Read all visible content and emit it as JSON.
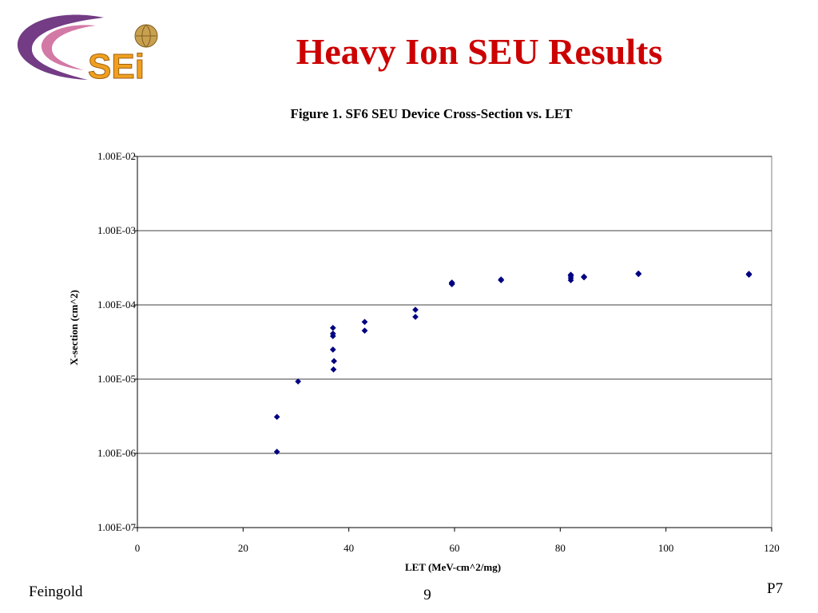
{
  "slide": {
    "title": "Heavy Ion SEU Results",
    "logo_text": "SEi",
    "footer_left": "Feingold",
    "footer_page": "9",
    "footer_right": "P7"
  },
  "colors": {
    "title": "#cc0000",
    "marker": "#000080",
    "logo_swoosh": "#5a1a6e",
    "logo_text": "#f0a020"
  },
  "chart_data": {
    "type": "scatter",
    "title": "Figure 1. SF6 SEU Device Cross-Section vs. LET",
    "xlabel": "LET (MeV-cm^2/mg)",
    "ylabel": "X-section (cm^2)",
    "xlim": [
      0,
      120
    ],
    "ylim": [
      1e-07,
      0.01
    ],
    "yscale": "log",
    "grid": "horizontal",
    "legend": "none",
    "x_ticks": [
      0,
      20,
      40,
      60,
      80,
      100,
      120
    ],
    "x_tick_labels": [
      "0",
      "20",
      "40",
      "60",
      "80",
      "100",
      "120"
    ],
    "y_ticks": [
      1e-07,
      1e-06,
      1e-05,
      0.0001,
      0.001,
      0.01
    ],
    "y_tick_labels": [
      "1.00E-07",
      "1.00E-06",
      "1.00E-05",
      "1.00E-04",
      "1.00E-03",
      "1.00E-02"
    ],
    "series": [
      {
        "points": [
          [
            26.4,
            1.05e-06
          ],
          [
            26.4,
            3.1e-06
          ],
          [
            30.4,
            9.3e-06
          ],
          [
            37.1,
            1.35e-05
          ],
          [
            37.2,
            1.75e-05
          ],
          [
            37.0,
            2.5e-05
          ],
          [
            37.0,
            3.8e-05
          ],
          [
            37.0,
            4.1e-05
          ],
          [
            37.0,
            4.9e-05
          ],
          [
            43.0,
            4.5e-05
          ],
          [
            43.0,
            5.9e-05
          ],
          [
            52.6,
            6.9e-05
          ],
          [
            52.6,
            8.6e-05
          ],
          [
            59.5,
            0.00019
          ],
          [
            59.5,
            0.000195
          ],
          [
            59.5,
            0.0002
          ],
          [
            68.8,
            0.000215
          ],
          [
            68.8,
            0.00022
          ],
          [
            82.0,
            0.000215
          ],
          [
            82.0,
            0.00023
          ],
          [
            82.0,
            0.000245
          ],
          [
            82.0,
            0.000255
          ],
          [
            84.5,
            0.000235
          ],
          [
            84.5,
            0.00024
          ],
          [
            94.8,
            0.00026
          ],
          [
            94.8,
            0.000265
          ],
          [
            115.7,
            0.000255
          ],
          [
            115.7,
            0.000262
          ]
        ]
      }
    ]
  }
}
